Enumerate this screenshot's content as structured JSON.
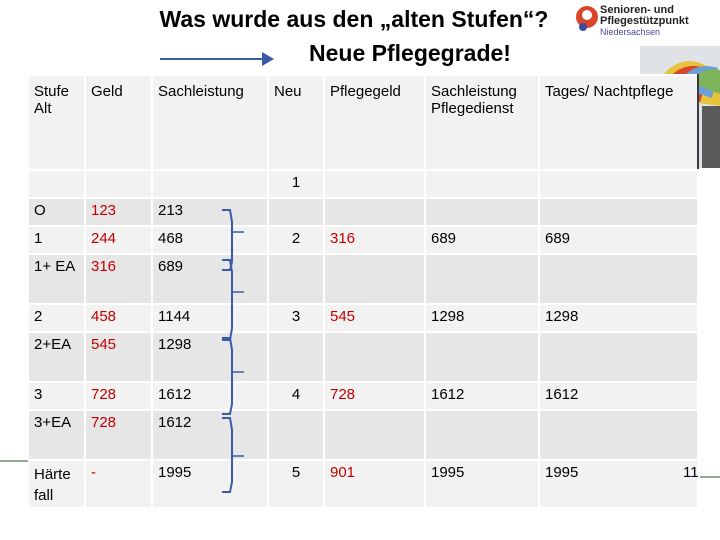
{
  "title_line1": "Was wurde aus den „alten Stufen“?",
  "title_line2": "Neue Pflegegrade!",
  "logo": {
    "line1": "Senioren- und",
    "line2": "Pflegestützpunkt",
    "line3": "Niedersachsen",
    "colors": {
      "mark": "#d9462a",
      "mark2": "#3b4ea0"
    }
  },
  "table": {
    "headers": [
      "Stufe Alt",
      "Geld",
      "Sachleistung",
      "Neu",
      "Pflegegeld",
      "Sachleistung Pflegedienst",
      "Tages/ Nachtpflege"
    ],
    "first_row_value": "1",
    "rows": [
      {
        "stufe": "O",
        "geld": "123",
        "sach": "213",
        "neu": "",
        "pflegegeld": "",
        "pflegedienst": "",
        "tages": ""
      },
      {
        "stufe": "1",
        "geld": "244",
        "sach": "468",
        "neu": "2",
        "pflegegeld": "316",
        "pflegedienst": "689",
        "tages": "689"
      },
      {
        "stufe": "1+ EA",
        "geld": "316",
        "sach": "689",
        "neu": "",
        "pflegegeld": "",
        "pflegedienst": "",
        "tages": ""
      },
      {
        "stufe": "2",
        "geld": "458",
        "sach": "1144",
        "neu": "3",
        "pflegegeld": "545",
        "pflegedienst": "1298",
        "tages": "1298"
      },
      {
        "stufe": "2+EA",
        "geld": "545",
        "sach": "1298",
        "neu": "",
        "pflegegeld": "",
        "pflegedienst": "",
        "tages": ""
      },
      {
        "stufe": "3",
        "geld": "728",
        "sach": "1612",
        "neu": "4",
        "pflegegeld": "728",
        "pflegedienst": "1612",
        "tages": "1612"
      },
      {
        "stufe": "3+EA",
        "geld": "728",
        "sach": "1612",
        "neu": "",
        "pflegegeld": "",
        "pflegedienst": "",
        "tages": ""
      },
      {
        "stufe": "Härte fall",
        "geld": "-",
        "sach": "1995",
        "neu": "5",
        "pflegegeld": "901",
        "pflegedienst": "1995",
        "tages": "1995"
      }
    ]
  },
  "slide_number": "11",
  "colors": {
    "accent_red": "#c00000",
    "arrow": "#3b5ba8",
    "cell": "#e6e6e6"
  }
}
